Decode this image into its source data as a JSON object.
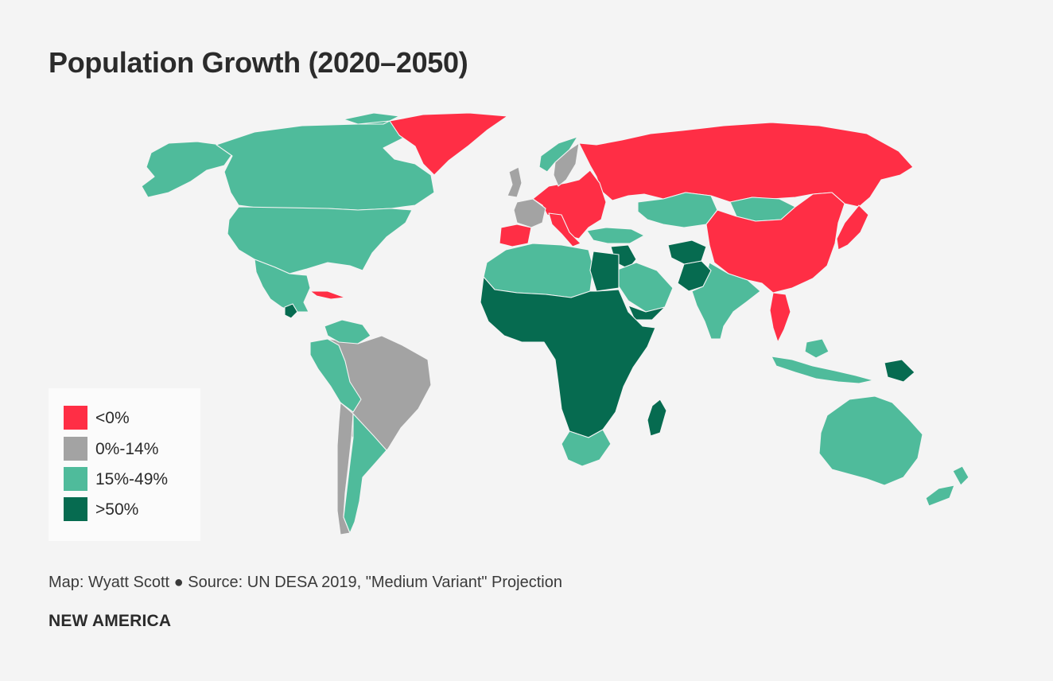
{
  "title": "Population Growth (2020–2050)",
  "legend": {
    "items": [
      {
        "label": "<0%",
        "color": "#ff2e45"
      },
      {
        "label": "0%-14%",
        "color": "#a3a3a3"
      },
      {
        "label": "15%-49%",
        "color": "#4fbb9b"
      },
      {
        "label": ">50%",
        "color": "#066b50"
      }
    ]
  },
  "source": "Map: Wyatt Scott ● Source: UN DESA 2019, \"Medium Variant\" Projection",
  "brand": "NEW AMERICA",
  "map_data": {
    "type": "choropleth",
    "categories": [
      "<0%",
      "0%-14%",
      "15%-49%",
      ">50%"
    ],
    "regions": [
      {
        "name": "Alaska / USA",
        "category": "15%-49%"
      },
      {
        "name": "Canada",
        "category": "15%-49%"
      },
      {
        "name": "United States",
        "category": "15%-49%"
      },
      {
        "name": "Mexico",
        "category": "15%-49%"
      },
      {
        "name": "Guatemala",
        "category": ">50%"
      },
      {
        "name": "Cuba",
        "category": "<0%"
      },
      {
        "name": "Greenland",
        "category": "<0%"
      },
      {
        "name": "Brazil",
        "category": "0%-14%"
      },
      {
        "name": "Chile",
        "category": "0%-14%"
      },
      {
        "name": "Argentina",
        "category": "15%-49%"
      },
      {
        "name": "Peru",
        "category": "15%-49%"
      },
      {
        "name": "Venezuela",
        "category": "15%-49%"
      },
      {
        "name": "Russia",
        "category": "<0%"
      },
      {
        "name": "Eastern Europe",
        "category": "<0%"
      },
      {
        "name": "Spain",
        "category": "<0%"
      },
      {
        "name": "Italy",
        "category": "<0%"
      },
      {
        "name": "France",
        "category": "0%-14%"
      },
      {
        "name": "United Kingdom",
        "category": "0%-14%"
      },
      {
        "name": "Sweden",
        "category": "0%-14%"
      },
      {
        "name": "Norway",
        "category": "15%-49%"
      },
      {
        "name": "Turkey",
        "category": "15%-49%"
      },
      {
        "name": "Kazakhstan",
        "category": "15%-49%"
      },
      {
        "name": "Mongolia",
        "category": "15%-49%"
      },
      {
        "name": "China",
        "category": "<0%"
      },
      {
        "name": "Japan",
        "category": "<0%"
      },
      {
        "name": "Thailand",
        "category": "<0%"
      },
      {
        "name": "India",
        "category": "15%-49%"
      },
      {
        "name": "Pakistan",
        "category": ">50%"
      },
      {
        "name": "Afghanistan",
        "category": ">50%"
      },
      {
        "name": "Iraq",
        "category": ">50%"
      },
      {
        "name": "Saudi Arabia",
        "category": "15%-49%"
      },
      {
        "name": "Yemen",
        "category": ">50%"
      },
      {
        "name": "North Africa",
        "category": "15%-49%"
      },
      {
        "name": "Egypt",
        "category": ">50%"
      },
      {
        "name": "Sub-Saharan Africa",
        "category": ">50%"
      },
      {
        "name": "South Africa",
        "category": "15%-49%"
      },
      {
        "name": "Madagascar",
        "category": ">50%"
      },
      {
        "name": "Indonesia",
        "category": "15%-49%"
      },
      {
        "name": "Papua New Guinea",
        "category": ">50%"
      },
      {
        "name": "Australia",
        "category": "15%-49%"
      },
      {
        "name": "New Zealand",
        "category": "15%-49%"
      }
    ]
  }
}
